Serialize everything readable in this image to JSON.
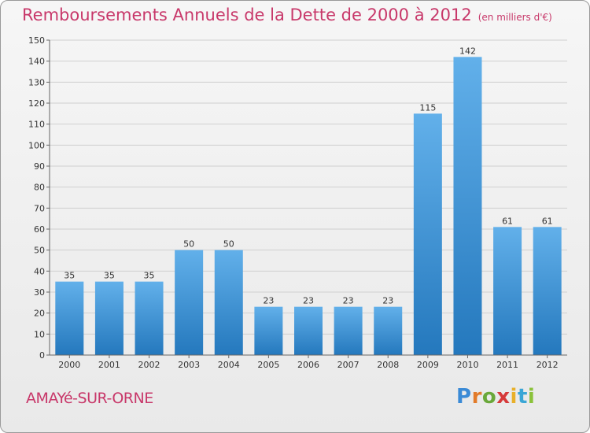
{
  "header": {
    "title": "Remboursements Annuels de la Dette de 2000 à 2012",
    "unit": "(en milliers d'€)"
  },
  "footer": {
    "commune": "AMAYé-SUR-ORNE",
    "logo_letters": [
      {
        "char": "P",
        "color": "#3a8ad6"
      },
      {
        "char": "r",
        "color": "#e27b2a"
      },
      {
        "char": "o",
        "color": "#6aa83a"
      },
      {
        "char": "x",
        "color": "#d63a3a"
      },
      {
        "char": "i",
        "color": "#e8b02a"
      },
      {
        "char": "t",
        "color": "#3aa6d6"
      },
      {
        "char": "i",
        "color": "#8ac23a"
      }
    ]
  },
  "colors": {
    "title": "#c8386a",
    "bar_top": "#62b0ea",
    "bar_bottom": "#2478bd",
    "grid": "#cfcfcf"
  },
  "chart_data": {
    "type": "bar",
    "categories": [
      "2000",
      "2001",
      "2002",
      "2003",
      "2004",
      "2005",
      "2006",
      "2007",
      "2008",
      "2009",
      "2010",
      "2011",
      "2012"
    ],
    "values": [
      35,
      35,
      35,
      50,
      50,
      23,
      23,
      23,
      23,
      115,
      142,
      61,
      61
    ],
    "ylim": [
      0,
      150
    ],
    "yticks": [
      0,
      10,
      20,
      30,
      40,
      50,
      60,
      70,
      80,
      90,
      100,
      110,
      120,
      130,
      140,
      150
    ],
    "grid": true,
    "data_labels": true
  }
}
